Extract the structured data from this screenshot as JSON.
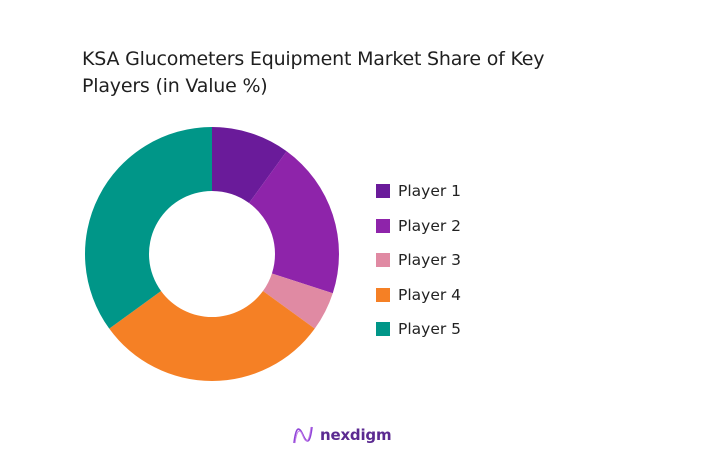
{
  "chart_data": {
    "type": "pie",
    "variant": "donut",
    "title": "KSA Glucometers Equipment Market Share of Key Players (in Value %)",
    "categories": [
      "Player 1",
      "Player 2",
      "Player 3",
      "Player 4",
      "Player 5"
    ],
    "values": [
      10,
      20,
      5,
      30,
      35
    ],
    "colors": [
      "#6A1B9A",
      "#8E24AA",
      "#E08AA3",
      "#F58025",
      "#009688"
    ],
    "legend_position": "right",
    "start_angle_deg": 0,
    "direction": "clockwise"
  },
  "title": "KSA Glucometers Equipment Market Share of Key Players (in Value %)",
  "legend": [
    {
      "label": "Player 1",
      "color": "#6A1B9A"
    },
    {
      "label": "Player 2",
      "color": "#8E24AA"
    },
    {
      "label": "Player 3",
      "color": "#E08AA3"
    },
    {
      "label": "Player 4",
      "color": "#F58025"
    },
    {
      "label": "Player 5",
      "color": "#009688"
    }
  ],
  "brand": {
    "name": "nexdigm",
    "icon": "nexdigm-wave-logo-icon"
  }
}
